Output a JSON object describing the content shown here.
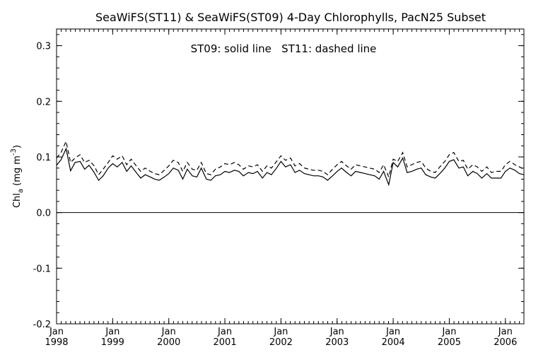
{
  "chart_data": {
    "type": "line",
    "title": "SeaWiFS(ST11) & SeaWiFS(ST09) 4-Day Chlorophylls, PacN25 Subset",
    "annotation": "ST09: solid line   ST11: dashed line",
    "ylabel": "Chl_a (mg m^-3)",
    "ylim": [
      -0.2,
      0.33
    ],
    "xlim": [
      1998.0,
      2006.33
    ],
    "y_ticks": [
      "-0.2",
      "-0.1",
      "0.0",
      "0.1",
      "0.2",
      "0.3"
    ],
    "x_ticks": [
      {
        "month": "Jan",
        "year": "1998"
      },
      {
        "month": "Jan",
        "year": "1999"
      },
      {
        "month": "Jan",
        "year": "2000"
      },
      {
        "month": "Jan",
        "year": "2001"
      },
      {
        "month": "Jan",
        "year": "2002"
      },
      {
        "month": "Jan",
        "year": "2003"
      },
      {
        "month": "Jan",
        "year": "2004"
      },
      {
        "month": "Jan",
        "year": "2005"
      },
      {
        "month": "Jan",
        "year": "2006"
      }
    ],
    "reference_line": 0.0,
    "series": [
      {
        "name": "ST09",
        "style": "solid",
        "x": [
          1998.0,
          1998.08,
          1998.17,
          1998.25,
          1998.33,
          1998.42,
          1998.5,
          1998.58,
          1998.67,
          1998.75,
          1998.83,
          1998.92,
          1999.0,
          1999.08,
          1999.17,
          1999.25,
          1999.33,
          1999.42,
          1999.5,
          1999.58,
          1999.67,
          1999.75,
          1999.83,
          1999.92,
          2000.0,
          2000.08,
          2000.17,
          2000.25,
          2000.33,
          2000.42,
          2000.5,
          2000.58,
          2000.67,
          2000.75,
          2000.83,
          2000.92,
          2001.0,
          2001.08,
          2001.17,
          2001.25,
          2001.33,
          2001.42,
          2001.5,
          2001.58,
          2001.67,
          2001.75,
          2001.83,
          2001.92,
          2002.0,
          2002.08,
          2002.17,
          2002.25,
          2002.33,
          2002.42,
          2002.5,
          2002.58,
          2002.67,
          2002.75,
          2002.83,
          2002.92,
          2003.0,
          2003.08,
          2003.17,
          2003.25,
          2003.33,
          2003.42,
          2003.5,
          2003.58,
          2003.67,
          2003.75,
          2003.83,
          2003.92,
          2004.0,
          2004.08,
          2004.17,
          2004.25,
          2004.33,
          2004.42,
          2004.5,
          2004.58,
          2004.67,
          2004.75,
          2004.83,
          2004.92,
          2005.0,
          2005.08,
          2005.17,
          2005.25,
          2005.33,
          2005.42,
          2005.5,
          2005.58,
          2005.67,
          2005.75,
          2005.83,
          2005.92,
          2006.0,
          2006.08,
          2006.17,
          2006.25,
          2006.33
        ],
        "values": [
          0.085,
          0.095,
          0.115,
          0.075,
          0.09,
          0.092,
          0.078,
          0.085,
          0.072,
          0.058,
          0.066,
          0.08,
          0.088,
          0.082,
          0.09,
          0.074,
          0.084,
          0.072,
          0.062,
          0.068,
          0.064,
          0.06,
          0.058,
          0.064,
          0.07,
          0.08,
          0.076,
          0.06,
          0.078,
          0.066,
          0.064,
          0.08,
          0.06,
          0.058,
          0.066,
          0.068,
          0.074,
          0.072,
          0.076,
          0.074,
          0.066,
          0.072,
          0.07,
          0.074,
          0.062,
          0.072,
          0.068,
          0.08,
          0.092,
          0.082,
          0.086,
          0.072,
          0.076,
          0.07,
          0.068,
          0.066,
          0.066,
          0.064,
          0.058,
          0.066,
          0.074,
          0.08,
          0.072,
          0.066,
          0.074,
          0.072,
          0.07,
          0.068,
          0.066,
          0.06,
          0.074,
          0.05,
          0.09,
          0.082,
          0.098,
          0.072,
          0.074,
          0.078,
          0.08,
          0.068,
          0.064,
          0.062,
          0.07,
          0.08,
          0.092,
          0.095,
          0.08,
          0.082,
          0.066,
          0.074,
          0.07,
          0.062,
          0.07,
          0.062,
          0.062,
          0.062,
          0.074,
          0.08,
          0.076,
          0.07,
          0.068
        ]
      },
      {
        "name": "ST11",
        "style": "dashed",
        "x": [
          1998.0,
          1998.08,
          1998.17,
          1998.25,
          1998.33,
          1998.42,
          1998.5,
          1998.58,
          1998.67,
          1998.75,
          1998.83,
          1998.92,
          1999.0,
          1999.08,
          1999.17,
          1999.25,
          1999.33,
          1999.42,
          1999.5,
          1999.58,
          1999.67,
          1999.75,
          1999.83,
          1999.92,
          2000.0,
          2000.08,
          2000.17,
          2000.25,
          2000.33,
          2000.42,
          2000.5,
          2000.58,
          2000.67,
          2000.75,
          2000.83,
          2000.92,
          2001.0,
          2001.08,
          2001.17,
          2001.25,
          2001.33,
          2001.42,
          2001.5,
          2001.58,
          2001.67,
          2001.75,
          2001.83,
          2001.92,
          2002.0,
          2002.08,
          2002.17,
          2002.25,
          2002.33,
          2002.42,
          2002.5,
          2002.58,
          2002.67,
          2002.75,
          2002.83,
          2002.92,
          2003.0,
          2003.08,
          2003.17,
          2003.25,
          2003.33,
          2003.42,
          2003.5,
          2003.58,
          2003.67,
          2003.75,
          2003.83,
          2003.92,
          2004.0,
          2004.08,
          2004.17,
          2004.25,
          2004.33,
          2004.42,
          2004.5,
          2004.58,
          2004.67,
          2004.75,
          2004.83,
          2004.92,
          2005.0,
          2005.08,
          2005.17,
          2005.25,
          2005.33,
          2005.42,
          2005.5,
          2005.58,
          2005.67,
          2005.75,
          2005.83,
          2005.92,
          2006.0,
          2006.08,
          2006.17,
          2006.25,
          2006.33
        ],
        "values": [
          0.098,
          0.108,
          0.128,
          0.09,
          0.098,
          0.104,
          0.09,
          0.094,
          0.084,
          0.068,
          0.078,
          0.09,
          0.102,
          0.096,
          0.102,
          0.086,
          0.096,
          0.084,
          0.074,
          0.08,
          0.074,
          0.07,
          0.068,
          0.076,
          0.084,
          0.094,
          0.09,
          0.074,
          0.09,
          0.078,
          0.076,
          0.09,
          0.07,
          0.068,
          0.078,
          0.082,
          0.088,
          0.086,
          0.09,
          0.086,
          0.078,
          0.084,
          0.082,
          0.086,
          0.074,
          0.084,
          0.08,
          0.092,
          0.102,
          0.094,
          0.098,
          0.084,
          0.088,
          0.08,
          0.078,
          0.076,
          0.076,
          0.074,
          0.068,
          0.078,
          0.086,
          0.092,
          0.084,
          0.078,
          0.086,
          0.084,
          0.082,
          0.08,
          0.078,
          0.072,
          0.086,
          0.064,
          0.096,
          0.092,
          0.108,
          0.082,
          0.086,
          0.09,
          0.092,
          0.08,
          0.074,
          0.072,
          0.082,
          0.092,
          0.104,
          0.108,
          0.092,
          0.094,
          0.078,
          0.086,
          0.082,
          0.074,
          0.082,
          0.072,
          0.074,
          0.074,
          0.086,
          0.092,
          0.086,
          0.082,
          0.078
        ]
      }
    ]
  }
}
